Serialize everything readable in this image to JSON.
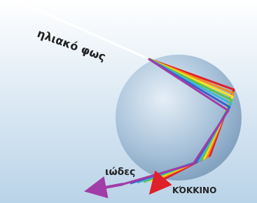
{
  "labels": {
    "sunlight": "ηλιακό φως",
    "violet": "ιώδες",
    "red": "ΚΌΚΚΙΝΟ"
  }
}
